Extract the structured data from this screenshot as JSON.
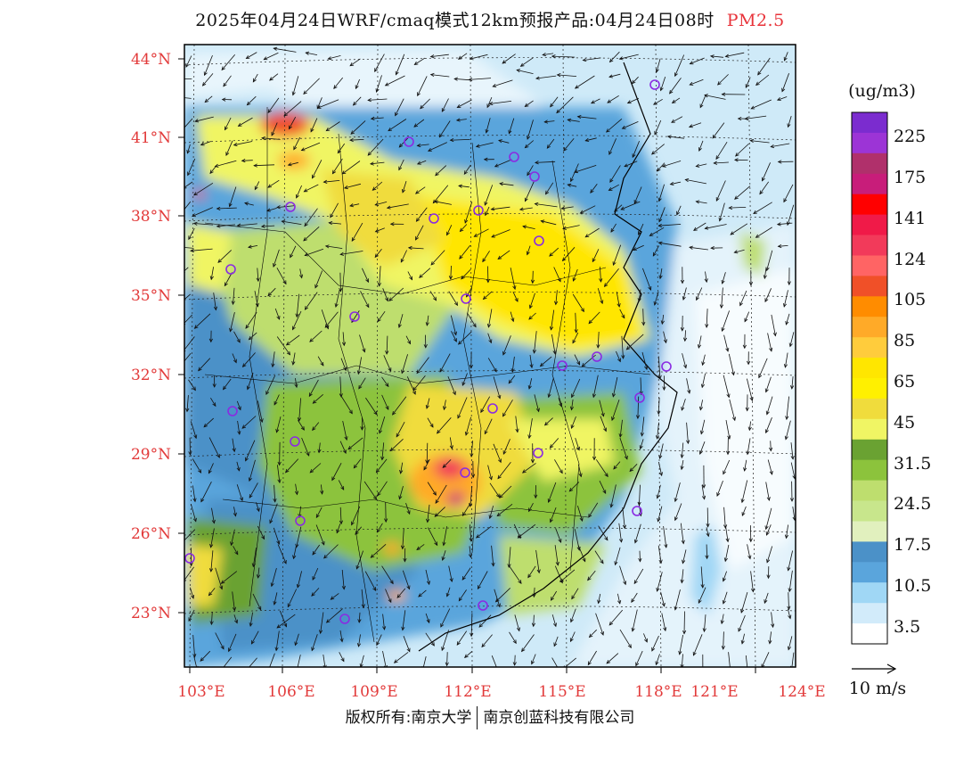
{
  "title": {
    "main": "2025年04月24日WRF/cmaq模式12km预报产品:04月24日08时",
    "variable": "PM2.5"
  },
  "lat_labels": [
    "44°N",
    "41°N",
    "38°N",
    "35°N",
    "32°N",
    "29°N",
    "26°N",
    "23°N"
  ],
  "lon_labels": [
    "103°E",
    "106°E",
    "109°E",
    "112°E",
    "115°E",
    "118°E",
    "121°E",
    "124°E"
  ],
  "colorbar": {
    "unit": "(ug/m3)",
    "colors": [
      "#7b2ccf",
      "#9c34d6",
      "#b0306b",
      "#c81d7a",
      "#ff0000",
      "#f01a48",
      "#f23a5a",
      "#ff6464",
      "#f05028",
      "#ff8c00",
      "#ffaa28",
      "#ffcc3c",
      "#ffe600",
      "#fff000",
      "#f0dc3c",
      "#f0f564",
      "#6aa232",
      "#8cc33c",
      "#bede6e",
      "#c8e68c",
      "#e1f0be",
      "#4b91c8",
      "#5aa5dc",
      "#a0d7f5",
      "#d2ebfa",
      "#ffffff"
    ],
    "labels": [
      "225",
      "175",
      "141",
      "124",
      "105",
      "85",
      "65",
      "45",
      "31.5",
      "24.5",
      "17.5",
      "10.5",
      "3.5"
    ]
  },
  "wind_legend": {
    "label": "10 m/s"
  },
  "copyright": {
    "left": "版权所有:南京大学",
    "right": "南京创蓝科技有限公司"
  },
  "colors": {
    "axis_label": "#e23a3a",
    "marker": "#8a2be2",
    "border": "#000000"
  },
  "icons": {
    "city_marker": "circle-outline",
    "wind_vector": "arrow"
  }
}
